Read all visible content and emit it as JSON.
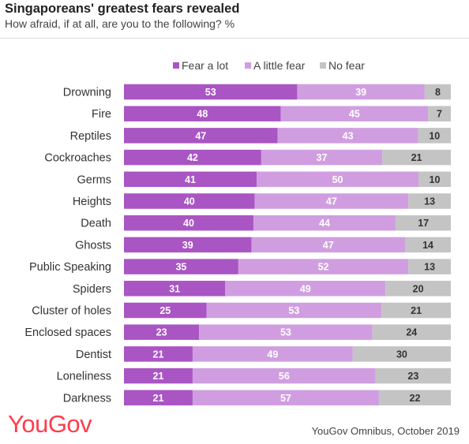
{
  "header": {
    "title": "Singaporeans' greatest fears revealed",
    "subtitle": "How afraid, if at all, are you to the following? %"
  },
  "footer": {
    "logo": "YouGov",
    "source": "YouGov Omnibus, October 2019"
  },
  "chart_data": {
    "type": "bar",
    "orientation": "horizontal",
    "stacked": true,
    "legend_position": "top",
    "categories": [
      "Drowning",
      "Fire",
      "Reptiles",
      "Cockroaches",
      "Germs",
      "Heights",
      "Death",
      "Ghosts",
      "Public Speaking",
      "Spiders",
      "Cluster of holes",
      "Enclosed spaces",
      "Dentist",
      "Loneliness",
      "Darkness"
    ],
    "series": [
      {
        "name": "Fear a lot",
        "color": "#aa55c4",
        "label_color": "#ffffff",
        "values": [
          53,
          48,
          47,
          42,
          41,
          40,
          40,
          39,
          35,
          31,
          25,
          23,
          21,
          21,
          21
        ]
      },
      {
        "name": "A little fear",
        "color": "#d09ee0",
        "label_color": "#ffffff",
        "values": [
          39,
          45,
          43,
          37,
          50,
          47,
          44,
          47,
          52,
          49,
          53,
          53,
          49,
          56,
          57
        ]
      },
      {
        "name": "No fear",
        "color": "#c4c4c4",
        "label_color": "#333333",
        "values": [
          8,
          7,
          10,
          21,
          10,
          13,
          17,
          14,
          13,
          20,
          21,
          24,
          30,
          23,
          22
        ]
      }
    ]
  }
}
